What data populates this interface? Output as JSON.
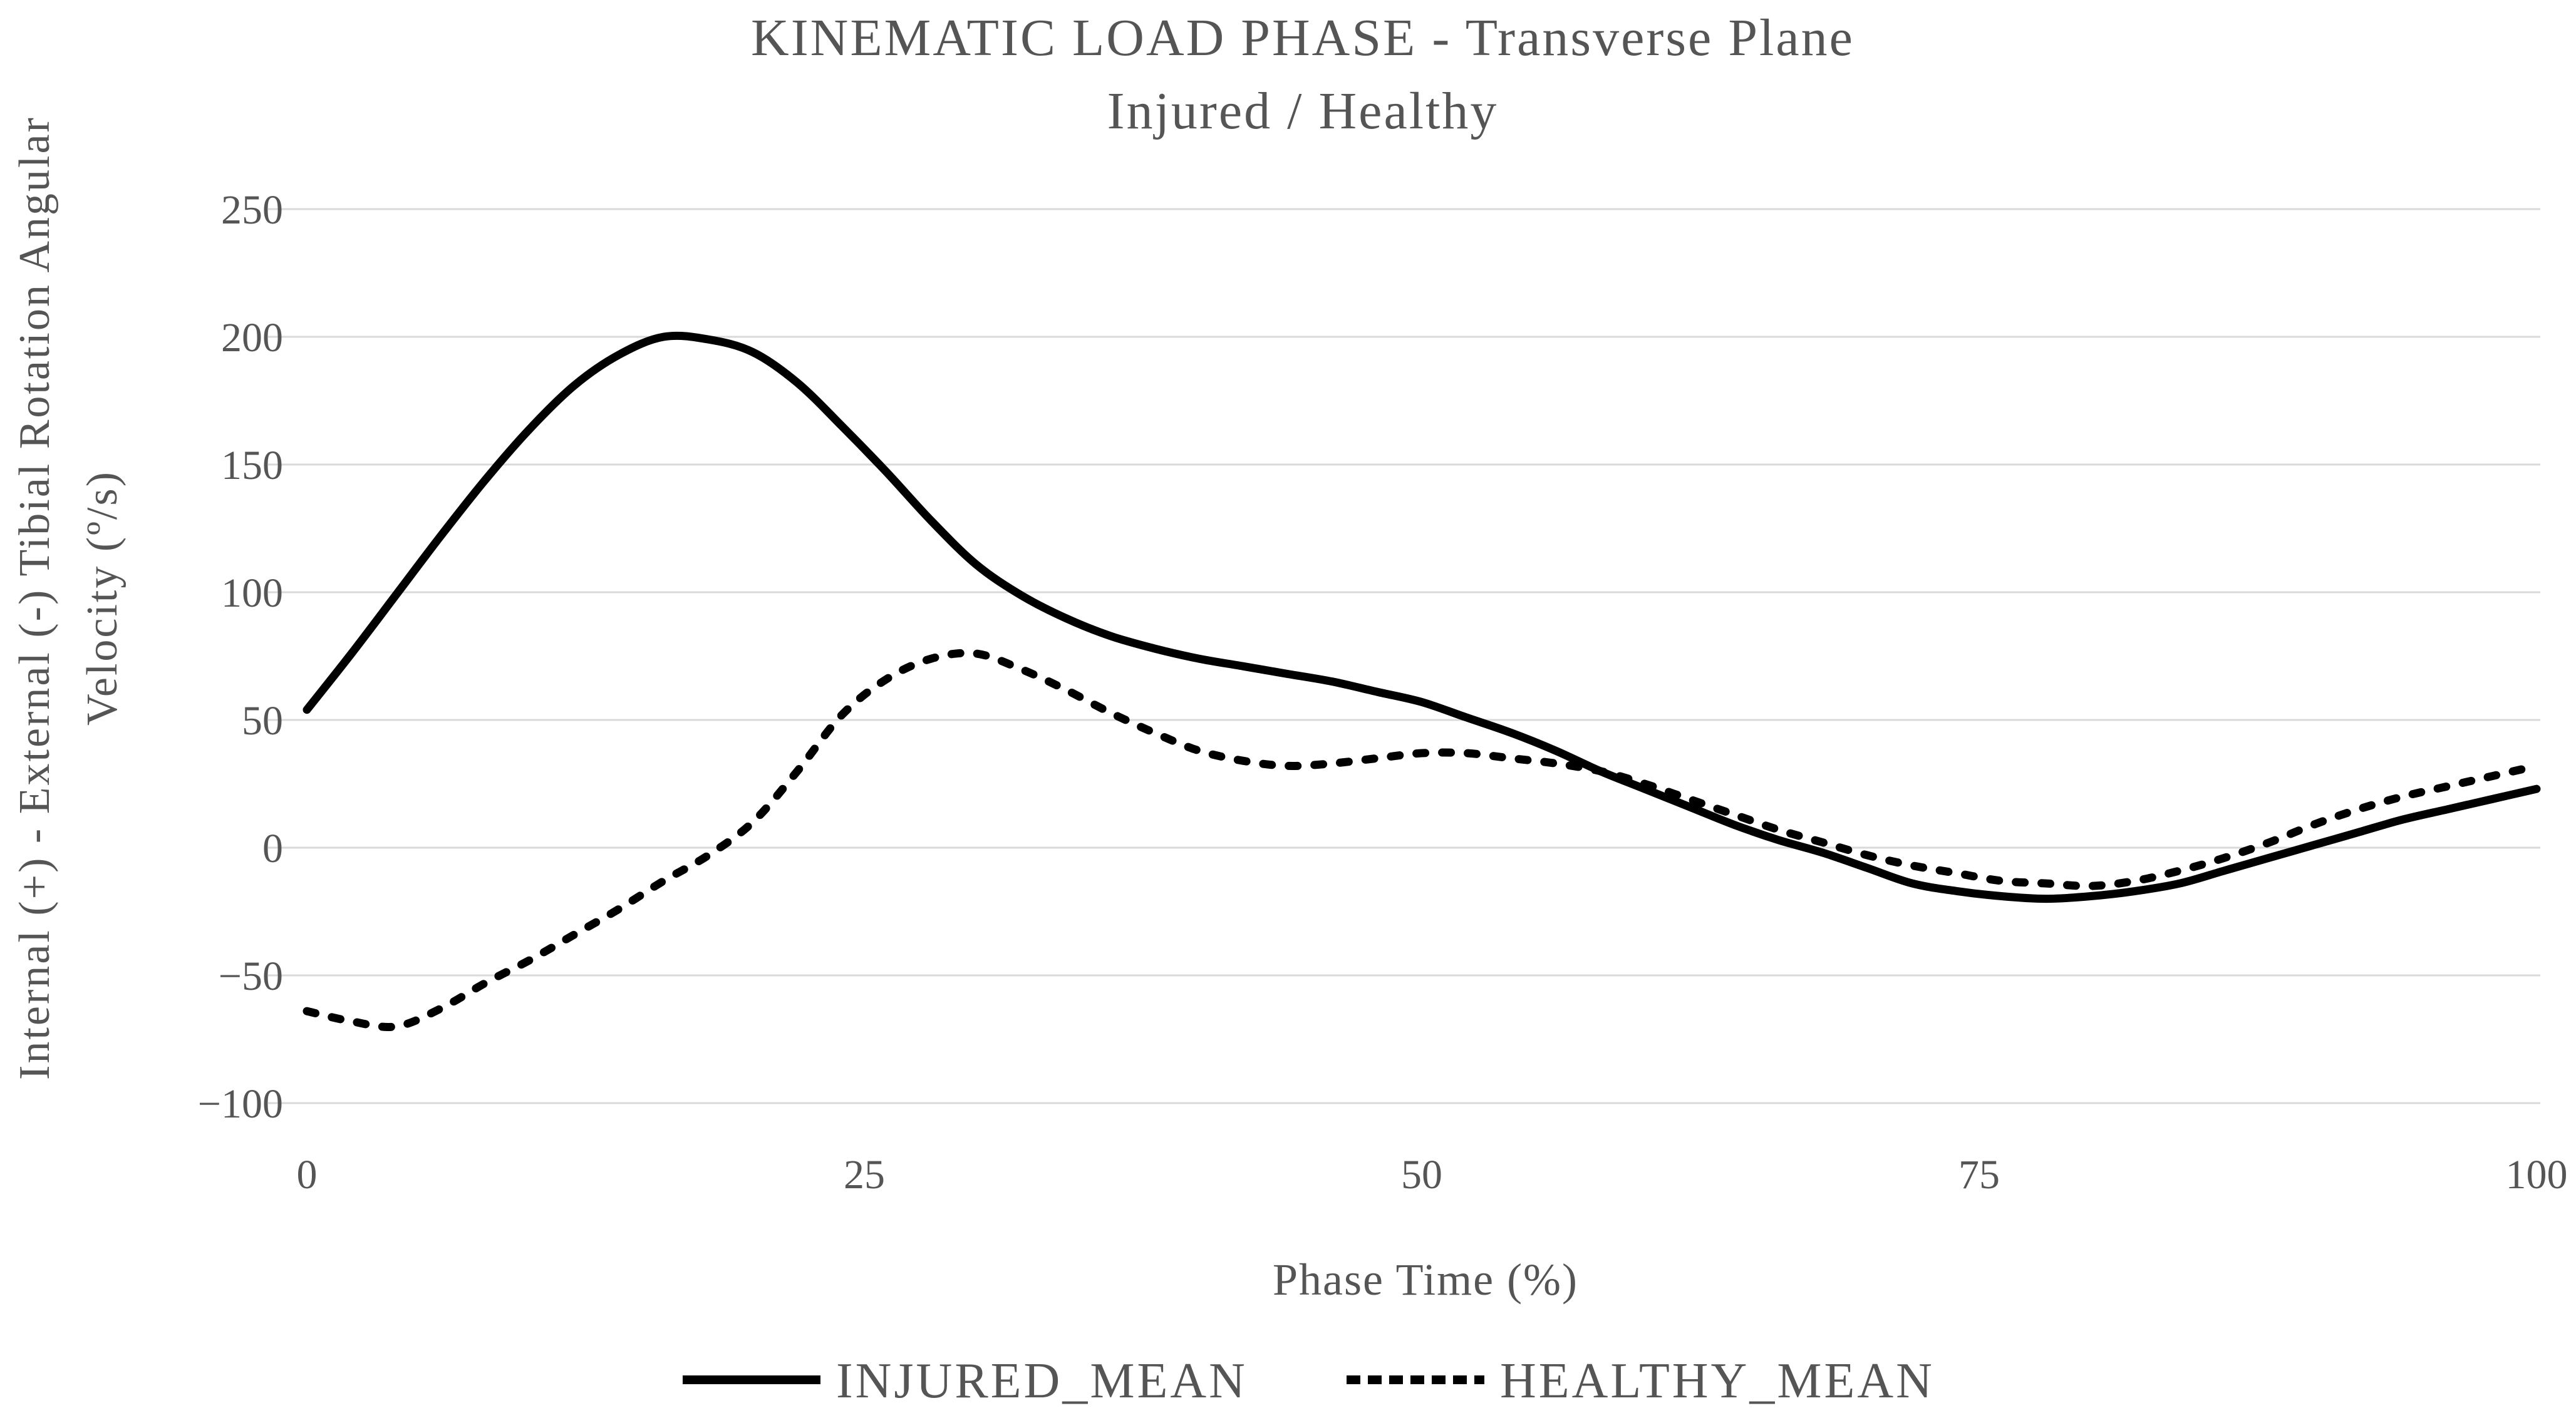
{
  "title": {
    "line1": "KINEMATIC LOAD PHASE - Transverse Plane",
    "line2": "Injured / Healthy"
  },
  "axes": {
    "x": {
      "label": "Phase Time (%)",
      "ticks": [
        0,
        25,
        50,
        75,
        100
      ],
      "range": [
        0,
        100
      ]
    },
    "y": {
      "label_line1": "Internal (+) - External (-) Tibial Rotation Angular",
      "label_line2": "Velocity (º/s)",
      "ticks": [
        250,
        200,
        150,
        100,
        50,
        0,
        -50,
        -100
      ],
      "range": [
        -100,
        250
      ]
    }
  },
  "legend": {
    "items": [
      {
        "name": "INJURED_MEAN",
        "style": "solid"
      },
      {
        "name": "HEALTHY_MEAN",
        "style": "dashed"
      }
    ]
  },
  "colors": {
    "series": "#000000",
    "gridline": "#d9d9d9",
    "text": "#555555",
    "background": "#ffffff"
  },
  "chart_data": {
    "type": "line",
    "title": "KINEMATIC LOAD PHASE - Transverse Plane (Injured / Healthy)",
    "xlabel": "Phase Time (%)",
    "ylabel": "Internal (+) - External (-) Tibial Rotation Angular Velocity (º/s)",
    "xlim": [
      0,
      100
    ],
    "ylim": [
      -100,
      250
    ],
    "grid": true,
    "legend_position": "bottom",
    "x": [
      0,
      2,
      4,
      6,
      8,
      10,
      12,
      14,
      16,
      18,
      20,
      22,
      24,
      26,
      28,
      30,
      32,
      34,
      36,
      38,
      40,
      42,
      44,
      46,
      48,
      50,
      52,
      54,
      56,
      58,
      60,
      62,
      64,
      66,
      68,
      70,
      72,
      74,
      76,
      78,
      80,
      82,
      84,
      86,
      88,
      90,
      92,
      94,
      96,
      98,
      100
    ],
    "series": [
      {
        "name": "INJURED_MEAN",
        "style": "solid",
        "values": [
          54,
          76,
          99,
          122,
          144,
          164,
          181,
          193,
          200,
          199,
          194,
          182,
          165,
          147,
          128,
          111,
          99,
          90,
          83,
          78,
          74,
          71,
          68,
          65,
          61,
          57,
          51,
          45,
          38,
          30,
          23,
          16,
          9,
          3,
          -2,
          -8,
          -14,
          -17,
          -19,
          -20,
          -19,
          -17,
          -14,
          -9,
          -4,
          1,
          6,
          11,
          15,
          19,
          23
        ]
      },
      {
        "name": "HEALTHY_MEAN",
        "style": "dashed",
        "values": [
          -64,
          -68,
          -70,
          -63,
          -53,
          -44,
          -34,
          -24,
          -13,
          -3,
          10,
          30,
          52,
          66,
          74,
          76,
          70,
          62,
          53,
          45,
          38,
          34,
          32,
          33,
          35,
          37,
          37,
          35,
          33,
          30,
          25,
          19,
          13,
          7,
          2,
          -3,
          -7,
          -10,
          -13,
          -14,
          -15,
          -13,
          -9,
          -4,
          2,
          9,
          15,
          20,
          24,
          28,
          32
        ]
      }
    ]
  }
}
